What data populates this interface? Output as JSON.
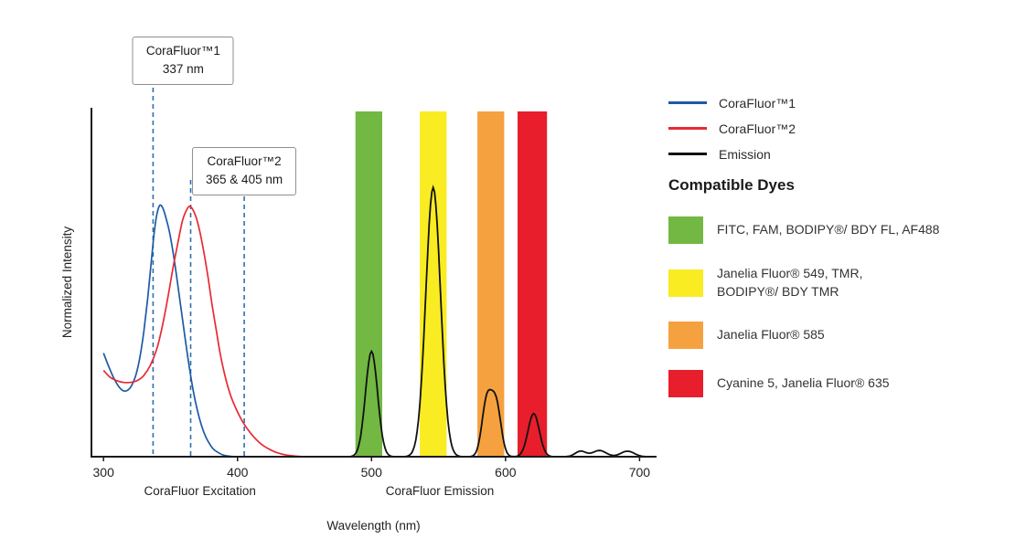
{
  "chart_data": {
    "type": "line",
    "title": "",
    "xlabel": "Wavelength (nm)",
    "ylabel": "Normalized Intensity",
    "x_ticks": [
      300,
      400,
      500,
      600,
      700
    ],
    "x_range": [
      291,
      712
    ],
    "y_range": [
      0,
      1
    ],
    "grid": false,
    "axis_color": "#1a1a1a",
    "dashed_line_color": "#2f6fad",
    "axis_group_labels": [
      {
        "text": "CoraFluor Excitation",
        "x_nm": 372
      },
      {
        "text": "CoraFluor Emission",
        "x_nm": 551
      }
    ],
    "annotations": [
      {
        "title": "CoraFluor™1",
        "subtitle": "337 nm",
        "lines_nm": [
          337
        ]
      },
      {
        "title": "CoraFluor™2",
        "subtitle": "365 & 405 nm",
        "lines_nm": [
          365,
          405
        ]
      }
    ],
    "bands": [
      {
        "name": "green",
        "color": "#72b843",
        "from_nm": 488,
        "to_nm": 508
      },
      {
        "name": "yellow",
        "color": "#f9ec23",
        "from_nm": 536,
        "to_nm": 556
      },
      {
        "name": "orange",
        "color": "#f6a13f",
        "from_nm": 579,
        "to_nm": 599
      },
      {
        "name": "red",
        "color": "#e81e2c",
        "from_nm": 609,
        "to_nm": 631
      }
    ],
    "series": [
      {
        "name": "CoraFluor™1",
        "kind": "excitation",
        "color": "#1c5ba5",
        "points": [
          [
            300,
            0.3
          ],
          [
            304,
            0.26
          ],
          [
            308,
            0.225
          ],
          [
            312,
            0.2
          ],
          [
            316,
            0.19
          ],
          [
            320,
            0.2
          ],
          [
            324,
            0.235
          ],
          [
            327,
            0.285
          ],
          [
            330,
            0.36
          ],
          [
            333,
            0.46
          ],
          [
            336,
            0.58
          ],
          [
            338,
            0.655
          ],
          [
            340,
            0.705
          ],
          [
            342,
            0.728
          ],
          [
            344,
            0.722
          ],
          [
            346,
            0.7
          ],
          [
            349,
            0.655
          ],
          [
            352,
            0.59
          ],
          [
            355,
            0.51
          ],
          [
            358,
            0.425
          ],
          [
            361,
            0.34
          ],
          [
            364,
            0.26
          ],
          [
            367,
            0.19
          ],
          [
            370,
            0.135
          ],
          [
            373,
            0.092
          ],
          [
            376,
            0.06
          ],
          [
            379,
            0.038
          ],
          [
            382,
            0.022
          ],
          [
            386,
            0.011
          ],
          [
            390,
            0.004
          ],
          [
            395,
            0.001
          ],
          [
            400,
            0
          ]
        ]
      },
      {
        "name": "CoraFluor™2",
        "kind": "excitation",
        "color": "#e62a33",
        "points": [
          [
            300,
            0.25
          ],
          [
            305,
            0.23
          ],
          [
            310,
            0.22
          ],
          [
            315,
            0.215
          ],
          [
            320,
            0.215
          ],
          [
            325,
            0.22
          ],
          [
            330,
            0.235
          ],
          [
            335,
            0.265
          ],
          [
            340,
            0.315
          ],
          [
            344,
            0.38
          ],
          [
            348,
            0.46
          ],
          [
            352,
            0.55
          ],
          [
            356,
            0.63
          ],
          [
            359,
            0.685
          ],
          [
            362,
            0.715
          ],
          [
            364,
            0.725
          ],
          [
            366,
            0.72
          ],
          [
            369,
            0.695
          ],
          [
            372,
            0.65
          ],
          [
            375,
            0.59
          ],
          [
            378,
            0.52
          ],
          [
            381,
            0.44
          ],
          [
            384,
            0.37
          ],
          [
            387,
            0.3
          ],
          [
            390,
            0.245
          ],
          [
            393,
            0.2
          ],
          [
            396,
            0.165
          ],
          [
            400,
            0.13
          ],
          [
            404,
            0.1
          ],
          [
            408,
            0.077
          ],
          [
            412,
            0.058
          ],
          [
            416,
            0.042
          ],
          [
            420,
            0.03
          ],
          [
            425,
            0.019
          ],
          [
            430,
            0.011
          ],
          [
            436,
            0.005
          ],
          [
            442,
            0.002
          ],
          [
            450,
            0
          ]
        ]
      },
      {
        "name": "Emission",
        "kind": "emission",
        "color": "#111111",
        "x_start": 478,
        "x_end": 712,
        "peaks": [
          {
            "center": 500,
            "height": 0.305,
            "width": 4.5
          },
          {
            "center": 546,
            "height": 0.78,
            "width": 5.5
          },
          {
            "center": 586,
            "height": 0.16,
            "width": 3.6
          },
          {
            "center": 593,
            "height": 0.15,
            "width": 3.6
          },
          {
            "center": 621,
            "height": 0.125,
            "width": 4.2
          },
          {
            "center": 656,
            "height": 0.016,
            "width": 4
          },
          {
            "center": 670,
            "height": 0.018,
            "width": 5
          },
          {
            "center": 691,
            "height": 0.016,
            "width": 5
          }
        ]
      }
    ]
  },
  "legend": {
    "items": [
      {
        "label": "CoraFluor™1",
        "color": "#1c5ba5"
      },
      {
        "label": "CoraFluor™2",
        "color": "#e62a33"
      },
      {
        "label": "Emission",
        "color": "#111111"
      }
    ]
  },
  "dyes": {
    "heading": "Compatible Dyes",
    "items": [
      {
        "color": "#72b843",
        "label": "FITC, FAM, BODIPY®/ BDY FL, AF488"
      },
      {
        "color": "#f9ec23",
        "label": "Janelia Fluor® 549, TMR,\nBODIPY®/ BDY TMR"
      },
      {
        "color": "#f6a13f",
        "label": "Janelia Fluor® 585"
      },
      {
        "color": "#e81e2c",
        "label": "Cyanine 5, Janelia Fluor® 635"
      }
    ]
  }
}
